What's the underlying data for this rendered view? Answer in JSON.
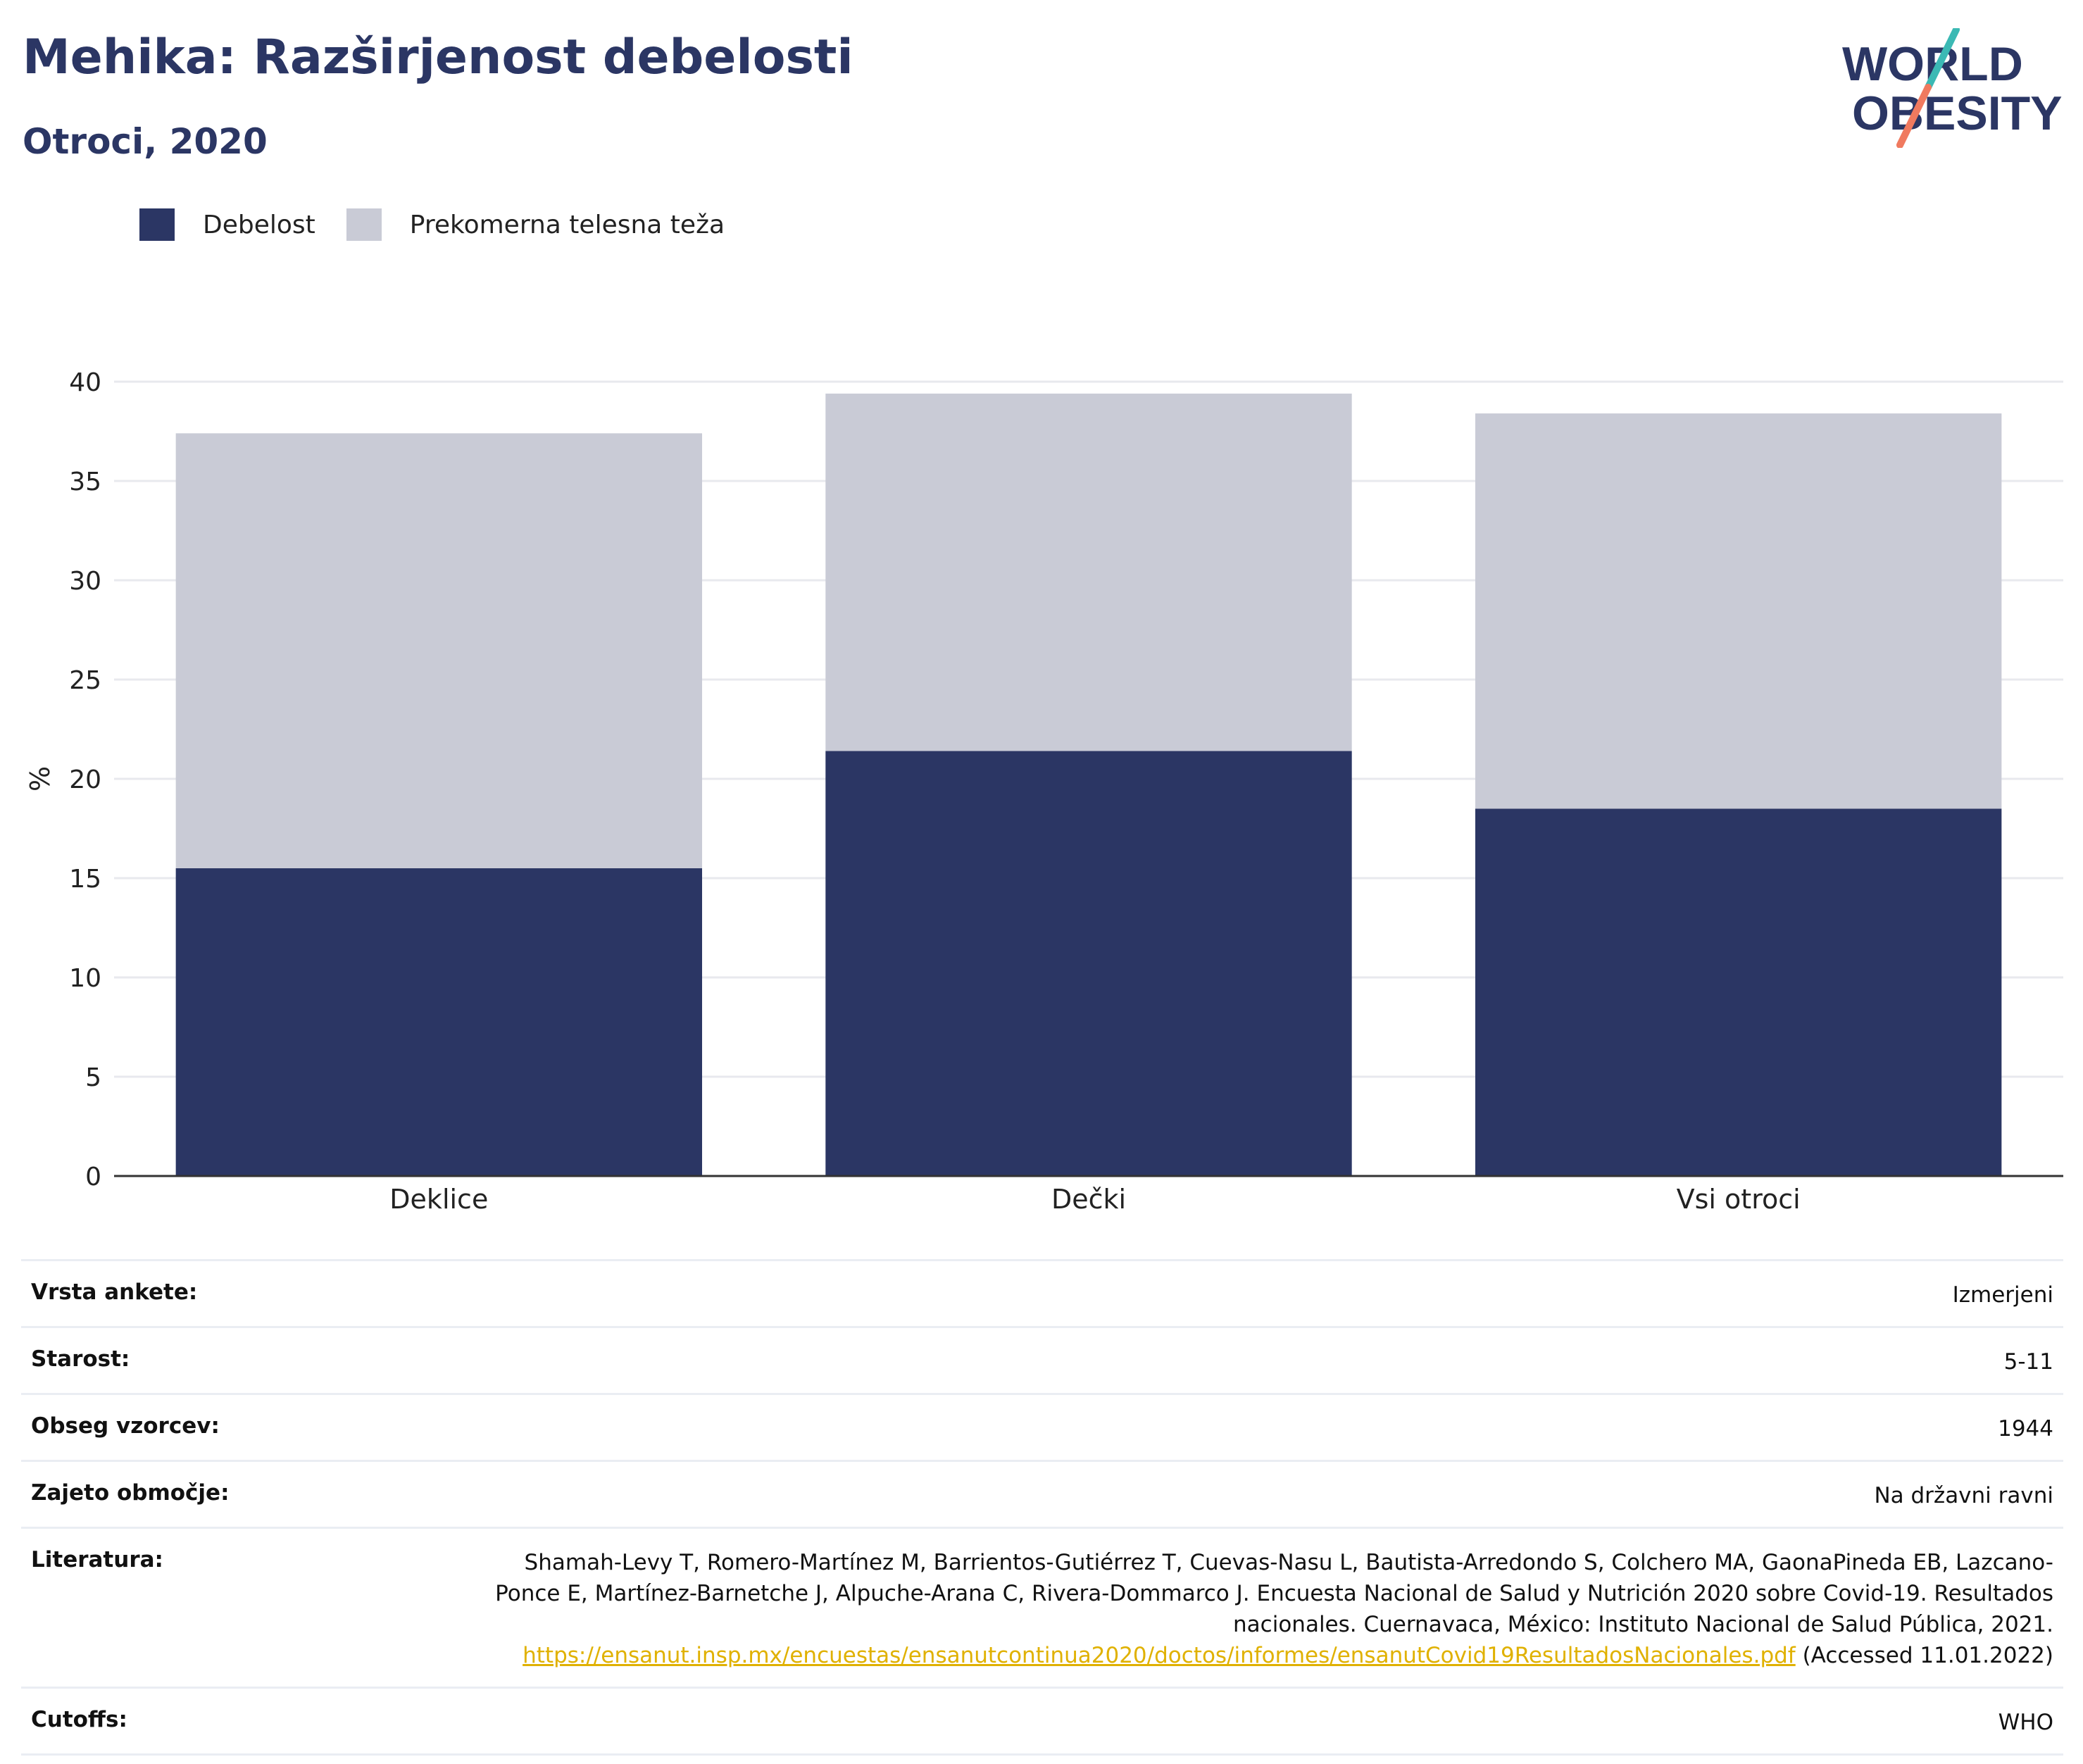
{
  "header": {
    "title": "Mehika: Razširjenost debelosti",
    "subtitle": "Otroci, 2020"
  },
  "logo": {
    "line1": "WORLD",
    "line2": "OBESITY",
    "colors": {
      "text": "#2b3664",
      "slash_top": "#3bb9b4",
      "slash_bottom": "#f07a5f"
    }
  },
  "legend": [
    {
      "label": "Debelost",
      "color": "#2b3664"
    },
    {
      "label": "Prekomerna telesna teža",
      "color": "#c9cbd6"
    }
  ],
  "chart_data": {
    "type": "bar",
    "stacked": true,
    "categories": [
      "Deklice",
      "Dečki",
      "Vsi otroci"
    ],
    "series": [
      {
        "name": "Debelost",
        "values": [
          15.5,
          21.4,
          18.5
        ],
        "color": "#2b3664"
      },
      {
        "name": "Prekomerna telesna teža",
        "values": [
          21.9,
          18.0,
          19.9
        ],
        "color": "#c9cbd6"
      }
    ],
    "ylabel": "%",
    "xlabel": "",
    "ylim": [
      0,
      40
    ],
    "yticks": [
      0,
      5,
      10,
      15,
      20,
      25,
      30,
      35,
      40
    ],
    "grid": true,
    "legend_position": "top-left"
  },
  "meta": {
    "survey_type": {
      "label": "Vrsta ankete:",
      "value": "Izmerjeni"
    },
    "age": {
      "label": "Starost:",
      "value": "5-11"
    },
    "sample_size": {
      "label": "Obseg vzorcev:",
      "value": "1944"
    },
    "area": {
      "label": "Zajeto območje:",
      "value": "Na državni ravni"
    },
    "literature": {
      "label": "Literatura:",
      "text": "Shamah-Levy T, Romero-Martínez M, Barrientos-Gutiérrez T, Cuevas-Nasu L, Bautista-Arredondo S, Colchero MA, GaonaPineda EB, Lazcano-Ponce E, Martínez-Barnetche J, Alpuche-Arana C, Rivera-Dommarco J. Encuesta Nacional de Salud y Nutrición 2020 sobre Covid-19. Resultados nacionales. Cuernavaca, México: Instituto Nacional de Salud Pública, 2021.",
      "link": "https://ensanut.insp.mx/encuestas/ensanutcontinua2020/doctos/informes/ensanutCovid19ResultadosNacionales.pdf",
      "accessed": "(Accessed 11.01.2022)"
    },
    "cutoffs": {
      "label": "Cutoffs:",
      "value": "WHO"
    }
  }
}
